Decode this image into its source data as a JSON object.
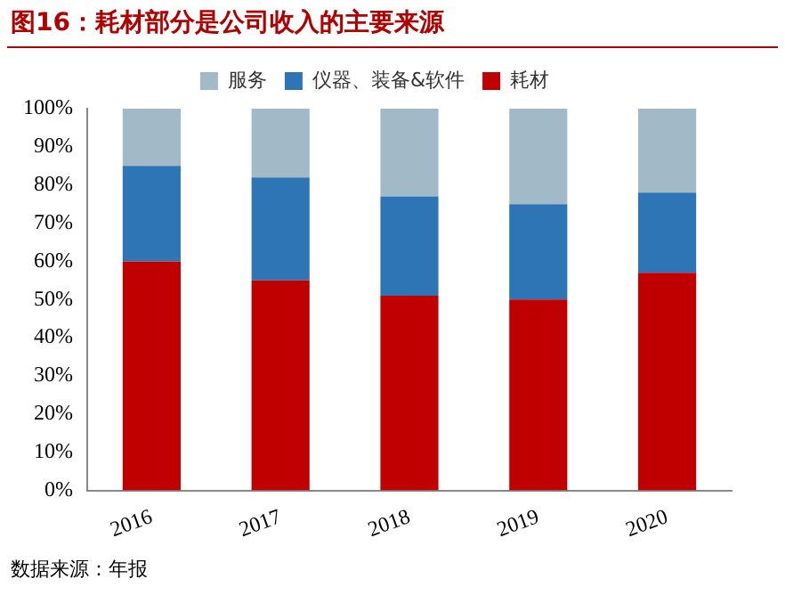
{
  "chart_data": {
    "type": "bar",
    "stacked": true,
    "title": "图16：耗材部分是公司收入的主要来源",
    "categories": [
      "2016",
      "2017",
      "2018",
      "2019",
      "2020"
    ],
    "series": [
      {
        "name": "耗材",
        "color": "#c00000",
        "values": [
          60,
          55,
          51,
          50,
          57
        ]
      },
      {
        "name": "仪器、装备&软件",
        "color": "#2e75b6",
        "values": [
          25,
          27,
          26,
          25,
          21
        ]
      },
      {
        "name": "服务",
        "color": "#a2b9c7",
        "values": [
          15,
          18,
          23,
          25,
          22
        ]
      }
    ],
    "ylim": [
      0,
      100
    ],
    "yticks": [
      {
        "value": 0,
        "label": "0%"
      },
      {
        "value": 10,
        "label": "10%"
      },
      {
        "value": 20,
        "label": "20%"
      },
      {
        "value": 30,
        "label": "30%"
      },
      {
        "value": 40,
        "label": "40%"
      },
      {
        "value": 50,
        "label": "50%"
      },
      {
        "value": 60,
        "label": "60%"
      },
      {
        "value": 70,
        "label": "70%"
      },
      {
        "value": 80,
        "label": "80%"
      },
      {
        "value": 90,
        "label": "90%"
      },
      {
        "value": 100,
        "label": "100%"
      }
    ],
    "grid": false,
    "legend": "top",
    "annotations": [
      "数据来源：年报"
    ]
  }
}
